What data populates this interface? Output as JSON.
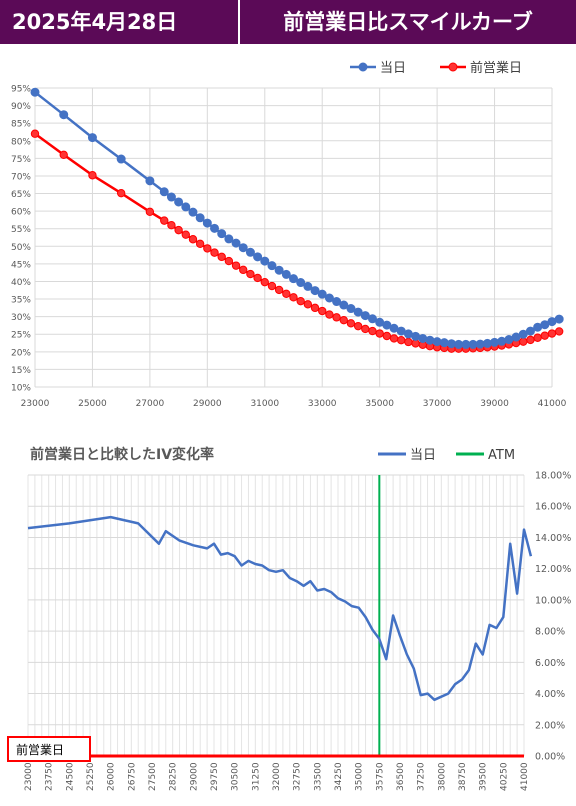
{
  "header": {
    "date": "2025年4月28日",
    "title": "前営業日比スマイルカーブ"
  },
  "chart_data": [
    {
      "type": "line",
      "title": "",
      "legend_position": "top",
      "xlim": [
        23000,
        41000
      ],
      "ylim": [
        10,
        95
      ],
      "x_ticks": [
        "23000",
        "25000",
        "27000",
        "29000",
        "31000",
        "33000",
        "35000",
        "37000",
        "39000",
        "41000"
      ],
      "y_ticks": [
        "10%",
        "15%",
        "20%",
        "25%",
        "30%",
        "35%",
        "40%",
        "45%",
        "50%",
        "55%",
        "60%",
        "65%",
        "70%",
        "75%",
        "80%",
        "85%",
        "90%",
        "95%"
      ],
      "grid": true,
      "colors": {
        "today": "#4472c4",
        "prev": "#ff0000"
      },
      "series": [
        {
          "name": "当日",
          "points": [
            [
              23000,
              93.8
            ],
            [
              24000,
              87.4
            ],
            [
              25000,
              80.9
            ],
            [
              26000,
              74.8
            ],
            [
              27000,
              68.6
            ],
            [
              27500,
              65.5
            ],
            [
              27750,
              64.0
            ],
            [
              28000,
              62.6
            ],
            [
              28250,
              61.2
            ],
            [
              28500,
              59.7
            ],
            [
              28750,
              58.1
            ],
            [
              29000,
              56.6
            ],
            [
              29250,
              55.1
            ],
            [
              29500,
              53.6
            ],
            [
              29750,
              52.1
            ],
            [
              30000,
              50.9
            ],
            [
              30250,
              49.6
            ],
            [
              30500,
              48.3
            ],
            [
              30750,
              47.0
            ],
            [
              31000,
              45.8
            ],
            [
              31250,
              44.5
            ],
            [
              31500,
              43.2
            ],
            [
              31750,
              42.0
            ],
            [
              32000,
              40.8
            ],
            [
              32250,
              39.7
            ],
            [
              32500,
              38.6
            ],
            [
              32750,
              37.4
            ],
            [
              33000,
              36.4
            ],
            [
              33250,
              35.3
            ],
            [
              33500,
              34.3
            ],
            [
              33750,
              33.3
            ],
            [
              34000,
              32.3
            ],
            [
              34250,
              31.3
            ],
            [
              34500,
              30.3
            ],
            [
              34750,
              29.4
            ],
            [
              35000,
              28.4
            ],
            [
              35250,
              27.6
            ],
            [
              35500,
              26.7
            ],
            [
              35750,
              25.9
            ],
            [
              36000,
              25.1
            ],
            [
              36250,
              24.4
            ],
            [
              36500,
              23.8
            ],
            [
              36750,
              23.3
            ],
            [
              37000,
              22.9
            ],
            [
              37250,
              22.6
            ],
            [
              37500,
              22.3
            ],
            [
              37750,
              22.1
            ],
            [
              38000,
              22.1
            ],
            [
              38250,
              22.1
            ],
            [
              38500,
              22.2
            ],
            [
              38750,
              22.4
            ],
            [
              39000,
              22.7
            ],
            [
              39250,
              23.0
            ],
            [
              39500,
              23.5
            ],
            [
              39750,
              24.2
            ],
            [
              40000,
              25.0
            ],
            [
              40250,
              25.9
            ],
            [
              40500,
              27.0
            ],
            [
              40750,
              27.7
            ],
            [
              41000,
              28.6
            ],
            [
              41250,
              29.3
            ]
          ]
        },
        {
          "name": "前営業日",
          "points": [
            [
              23000,
              82.0
            ],
            [
              24000,
              76.0
            ],
            [
              25000,
              70.2
            ],
            [
              26000,
              65.1
            ],
            [
              27000,
              59.8
            ],
            [
              27500,
              57.3
            ],
            [
              27750,
              56.0
            ],
            [
              28000,
              54.6
            ],
            [
              28250,
              53.3
            ],
            [
              28500,
              52.0
            ],
            [
              28750,
              50.7
            ],
            [
              29000,
              49.4
            ],
            [
              29250,
              48.2
            ],
            [
              29500,
              47.0
            ],
            [
              29750,
              45.8
            ],
            [
              30000,
              44.5
            ],
            [
              30250,
              43.3
            ],
            [
              30500,
              42.1
            ],
            [
              30750,
              41.0
            ],
            [
              31000,
              39.8
            ],
            [
              31250,
              38.7
            ],
            [
              31500,
              37.6
            ],
            [
              31750,
              36.5
            ],
            [
              32000,
              35.5
            ],
            [
              32250,
              34.4
            ],
            [
              32500,
              33.5
            ],
            [
              32750,
              32.5
            ],
            [
              33000,
              31.6
            ],
            [
              33250,
              30.6
            ],
            [
              33500,
              29.8
            ],
            [
              33750,
              29.0
            ],
            [
              34000,
              28.1
            ],
            [
              34250,
              27.3
            ],
            [
              34500,
              26.5
            ],
            [
              34750,
              25.9
            ],
            [
              35000,
              25.2
            ],
            [
              35250,
              24.5
            ],
            [
              35500,
              23.8
            ],
            [
              35750,
              23.3
            ],
            [
              36000,
              22.8
            ],
            [
              36250,
              22.4
            ],
            [
              36500,
              22.0
            ],
            [
              36750,
              21.6
            ],
            [
              37000,
              21.3
            ],
            [
              37250,
              21.1
            ],
            [
              37500,
              20.9
            ],
            [
              37750,
              20.9
            ],
            [
              38000,
              20.9
            ],
            [
              38250,
              21.0
            ],
            [
              38500,
              21.1
            ],
            [
              38750,
              21.3
            ],
            [
              39000,
              21.5
            ],
            [
              39250,
              21.8
            ],
            [
              39500,
              22.1
            ],
            [
              39750,
              22.5
            ],
            [
              40000,
              22.9
            ],
            [
              40250,
              23.4
            ],
            [
              40500,
              24.0
            ],
            [
              40750,
              24.6
            ],
            [
              41000,
              25.2
            ],
            [
              41250,
              25.8
            ]
          ]
        }
      ]
    },
    {
      "type": "line",
      "title": "前営業日と比較したIV変化率",
      "legend_position": "top-right",
      "xlim": [
        23000,
        41000
      ],
      "ylim": [
        0,
        18
      ],
      "y_ticks": [
        "0.00%",
        "2.00%",
        "4.00%",
        "6.00%",
        "8.00%",
        "10.00%",
        "12.00%",
        "14.00%",
        "16.00%",
        "18.00%"
      ],
      "x_ticks": [
        "23000",
        "23750",
        "24500",
        "25250",
        "26000",
        "26750",
        "27500",
        "28250",
        "29000",
        "29750",
        "30500",
        "31250",
        "32000",
        "32750",
        "33500",
        "34250",
        "35000",
        "35750",
        "36500",
        "37250",
        "38000",
        "38750",
        "39500",
        "40250",
        "41000"
      ],
      "atm_strike": 35750,
      "baseline_label": "前営業日",
      "colors": {
        "change": "#4472c4",
        "atm": "#00b050",
        "baseline": "#ff0000"
      },
      "series": [
        {
          "name": "当日",
          "points": [
            [
              23000,
              14.6
            ],
            [
              24500,
              14.9
            ],
            [
              26000,
              15.3
            ],
            [
              27000,
              14.9
            ],
            [
              27750,
              13.6
            ],
            [
              28000,
              14.4
            ],
            [
              28500,
              13.8
            ],
            [
              29000,
              13.5
            ],
            [
              29500,
              13.3
            ],
            [
              29750,
              13.6
            ],
            [
              30000,
              12.9
            ],
            [
              30250,
              13.0
            ],
            [
              30500,
              12.8
            ],
            [
              30750,
              12.2
            ],
            [
              31000,
              12.5
            ],
            [
              31250,
              12.3
            ],
            [
              31500,
              12.2
            ],
            [
              31750,
              11.9
            ],
            [
              32000,
              11.8
            ],
            [
              32250,
              11.9
            ],
            [
              32500,
              11.4
            ],
            [
              32750,
              11.2
            ],
            [
              33000,
              10.9
            ],
            [
              33250,
              11.2
            ],
            [
              33500,
              10.6
            ],
            [
              33750,
              10.7
            ],
            [
              34000,
              10.5
            ],
            [
              34250,
              10.1
            ],
            [
              34500,
              9.9
            ],
            [
              34750,
              9.6
            ],
            [
              35000,
              9.5
            ],
            [
              35250,
              8.9
            ],
            [
              35500,
              8.1
            ],
            [
              35750,
              7.5
            ],
            [
              36000,
              6.2
            ],
            [
              36250,
              9.0
            ],
            [
              36500,
              7.7
            ],
            [
              36750,
              6.5
            ],
            [
              37000,
              5.6
            ],
            [
              37250,
              3.9
            ],
            [
              37500,
              4.0
            ],
            [
              37750,
              3.6
            ],
            [
              38000,
              3.8
            ],
            [
              38250,
              4.0
            ],
            [
              38500,
              4.6
            ],
            [
              38750,
              4.9
            ],
            [
              39000,
              5.5
            ],
            [
              39250,
              7.2
            ],
            [
              39500,
              6.5
            ],
            [
              39750,
              8.4
            ],
            [
              40000,
              8.2
            ],
            [
              40250,
              8.9
            ],
            [
              40500,
              13.6
            ],
            [
              40750,
              10.4
            ],
            [
              41000,
              14.5
            ],
            [
              41250,
              12.8
            ]
          ]
        },
        {
          "name": "ATM"
        }
      ]
    }
  ]
}
